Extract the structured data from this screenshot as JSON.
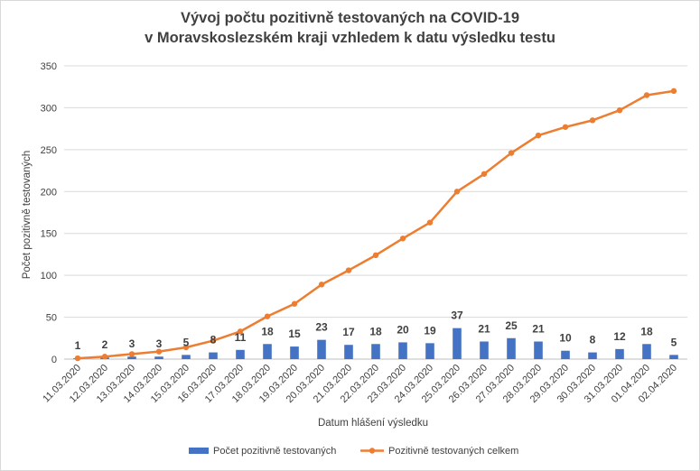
{
  "chart_data": {
    "type": "bar+line",
    "title_line1": "Vývoj počtu pozitivně testovaných na COVID-19",
    "title_line2": "v Moravskoslezském kraji vzhledem k datu výsledku testu",
    "xlabel": "Datum hlášení výsledku",
    "ylabel": "Počet pozitivně testovaných",
    "ylim": [
      0,
      350
    ],
    "yticks": [
      "0",
      "50",
      "100",
      "150",
      "200",
      "250",
      "300",
      "350"
    ],
    "grid": true,
    "legend_position": "bottom",
    "categories": [
      "11.03.2020",
      "12.03.2020",
      "13.03.2020",
      "14.03.2020",
      "15.03.2020",
      "16.03.2020",
      "17.03.2020",
      "18.03.2020",
      "19.03.2020",
      "20.03.2020",
      "21.03.2020",
      "22.03.2020",
      "23.03.2020",
      "24.03.2020",
      "25.03.2020",
      "26.03.2020",
      "27.03.2020",
      "28.03.2020",
      "29.03.2020",
      "30.03.2020",
      "31.03.2020",
      "01.04.2020",
      "02.04.2020"
    ],
    "series": [
      {
        "name": "Počet pozitivně testovaných",
        "type": "bar",
        "color": "#4472c4",
        "values": [
          1,
          2,
          3,
          3,
          5,
          8,
          11,
          18,
          15,
          23,
          17,
          18,
          20,
          19,
          37,
          21,
          25,
          21,
          10,
          8,
          12,
          18,
          5
        ]
      },
      {
        "name": "Pozitivně testovaných celkem",
        "type": "line",
        "color": "#ed7d31",
        "values": [
          1,
          3,
          6,
          9,
          14,
          22,
          33,
          51,
          66,
          89,
          106,
          124,
          144,
          163,
          200,
          221,
          246,
          267,
          277,
          285,
          297,
          315,
          320
        ]
      }
    ]
  }
}
